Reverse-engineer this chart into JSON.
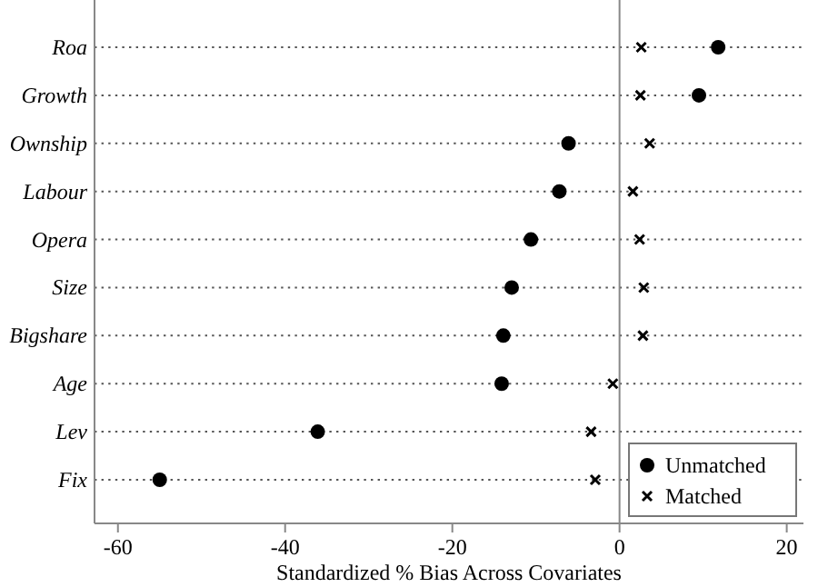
{
  "chart_data": {
    "type": "scatter",
    "orientation": "horizontal",
    "xlabel": "Standardized % Bias Across Covariates",
    "categories": [
      "Roa",
      "Growth",
      "Ownship",
      "Labour",
      "Opera",
      "Size",
      "Bigshare",
      "Age",
      "Lev",
      "Fix"
    ],
    "series": [
      {
        "name": "Unmatched",
        "color": "#000000",
        "marker": "circle",
        "values": [
          11.8,
          9.5,
          -6.1,
          -7.2,
          -10.6,
          -12.9,
          -13.9,
          -14.1,
          -36.1,
          -55
        ]
      },
      {
        "name": "Matched",
        "color": "#000000",
        "marker": "cross",
        "values": [
          2.6,
          2.5,
          3.6,
          1.6,
          2.4,
          2.9,
          2.8,
          -0.8,
          -3.4,
          -2.9
        ]
      }
    ],
    "xlim": [
      -62.8,
      22
    ],
    "xticks": [
      -60,
      -40,
      -20,
      0,
      20
    ],
    "grid": "y",
    "legend": "bottom right",
    "ref_lines": [
      {
        "axis": "x",
        "value": 0,
        "color": "#888888"
      }
    ]
  }
}
